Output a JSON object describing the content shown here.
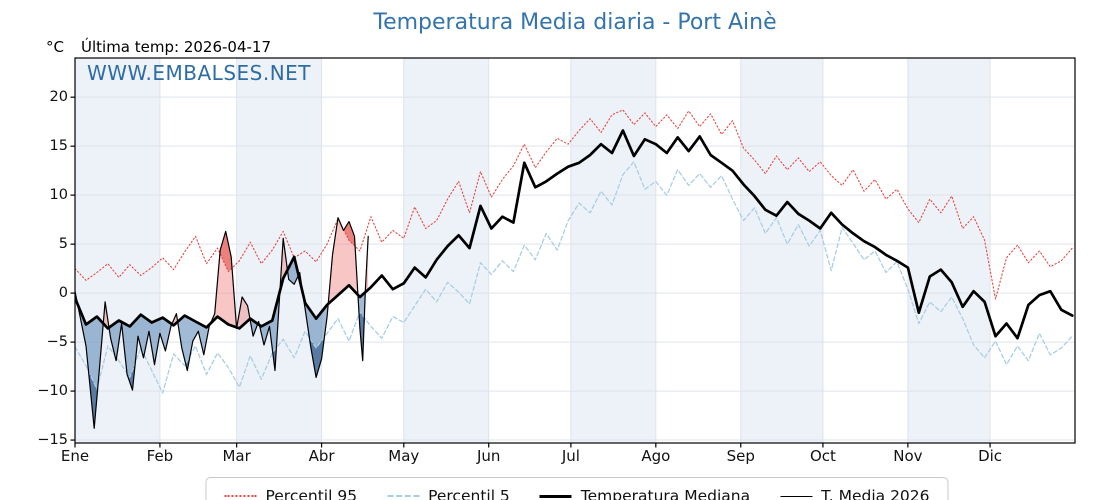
{
  "header": {
    "title": "Temperatura Media diaria - Port Ainè",
    "y_unit": "°C",
    "last_temp": "Última temp: 2026-04-17",
    "watermark": "WWW.EMBALSES.NET"
  },
  "legend": {
    "items": [
      {
        "key": "p95",
        "label": "Percentil 95"
      },
      {
        "key": "p5",
        "label": "Percentil 5"
      },
      {
        "key": "median",
        "label": "Temperatura Mediana"
      },
      {
        "key": "t2026",
        "label": "T. Media 2026"
      }
    ]
  },
  "chart_data": {
    "type": "line",
    "title": "Temperatura Media diaria - Port Ainè",
    "xlabel": "",
    "ylabel": "°C",
    "ylim": [
      -15.3,
      24
    ],
    "x_unit": "day_of_year",
    "grid": true,
    "legend_position": "bottom-center",
    "y_ticks": [
      -15,
      -10,
      -5,
      0,
      5,
      10,
      15,
      20
    ],
    "month_ticks": {
      "labels": [
        "Ene",
        "Feb",
        "Mar",
        "Abr",
        "May",
        "Jun",
        "Jul",
        "Ago",
        "Sep",
        "Oct",
        "Nov",
        "Dic"
      ],
      "start_days": [
        0,
        31,
        59,
        90,
        120,
        151,
        181,
        212,
        243,
        273,
        304,
        334
      ],
      "shaded_months": [
        0,
        2,
        4,
        6,
        8,
        10
      ]
    },
    "colors": {
      "band": "#edf2f8",
      "grid": "#dfe3ea",
      "axis": "#000000",
      "title_blue": "#3374ad",
      "watermark_blue": "#2e6da4",
      "p95_red": "#e8473f",
      "p5_blue": "#a8cee4",
      "black": "#000000"
    },
    "day_grid": [
      0,
      4,
      8,
      12,
      16,
      20,
      24,
      28,
      32,
      36,
      40,
      44,
      48,
      52,
      56,
      60,
      64,
      68,
      72,
      76,
      80,
      84,
      88,
      92,
      96,
      100,
      104,
      108,
      112,
      116,
      120,
      124,
      128,
      132,
      136,
      140,
      144,
      148,
      152,
      156,
      160,
      164,
      168,
      172,
      176,
      180,
      184,
      188,
      192,
      196,
      200,
      204,
      208,
      212,
      216,
      220,
      224,
      228,
      232,
      236,
      240,
      244,
      248,
      252,
      256,
      260,
      264,
      268,
      272,
      276,
      280,
      284,
      288,
      292,
      296,
      300,
      304,
      308,
      312,
      316,
      320,
      324,
      328,
      332,
      336,
      340,
      344,
      348,
      352,
      356,
      360,
      364
    ],
    "series": [
      {
        "key": "p95",
        "name": "Percentil 95",
        "color": "#e8473f",
        "width": 1.1,
        "dash": "1.3 2.4",
        "y": [
          2.5,
          1.3,
          2.1,
          3.0,
          1.6,
          2.9,
          1.8,
          2.6,
          3.6,
          2.4,
          4.2,
          5.8,
          3.0,
          4.6,
          2.2,
          3.3,
          5.2,
          3.0,
          4.4,
          6.3,
          3.6,
          4.3,
          3.2,
          5.0,
          7.6,
          5.4,
          4.3,
          7.8,
          5.2,
          6.4,
          5.6,
          8.8,
          6.6,
          7.4,
          9.6,
          11.4,
          8.2,
          12.4,
          9.8,
          11.6,
          13.0,
          15.2,
          12.8,
          14.4,
          15.8,
          15.2,
          16.6,
          17.8,
          16.4,
          18.2,
          18.7,
          17.2,
          18.4,
          17.0,
          18.2,
          16.8,
          18.6,
          17.0,
          18.3,
          16.2,
          17.6,
          14.8,
          13.6,
          12.2,
          14.0,
          12.6,
          13.8,
          12.4,
          13.4,
          12.0,
          11.0,
          12.6,
          10.4,
          11.6,
          9.6,
          10.6,
          8.6,
          7.2,
          9.6,
          8.2,
          9.9,
          6.6,
          7.8,
          5.4,
          -0.6,
          3.6,
          4.9,
          3.1,
          4.3,
          2.7,
          3.3,
          4.6
        ]
      },
      {
        "key": "p5",
        "name": "Percentil 5",
        "color": "#a8cee4",
        "width": 1.3,
        "dash": "4 2.8",
        "y": [
          -5.5,
          -7.4,
          -9.8,
          -5.4,
          -6.9,
          -8.6,
          -5.6,
          -7.9,
          -10.2,
          -6.2,
          -7.4,
          -5.4,
          -8.3,
          -6.1,
          -7.6,
          -9.6,
          -6.4,
          -8.8,
          -6.1,
          -4.7,
          -6.6,
          -3.9,
          -5.6,
          -4.1,
          -2.6,
          -4.9,
          -1.9,
          -3.4,
          -4.6,
          -2.4,
          -3.0,
          -1.3,
          0.4,
          -0.9,
          1.1,
          0.1,
          -1.1,
          3.1,
          1.9,
          3.3,
          2.2,
          4.9,
          3.4,
          6.1,
          4.4,
          7.4,
          9.2,
          8.2,
          10.4,
          9.0,
          12.1,
          13.4,
          10.6,
          11.4,
          10.0,
          12.6,
          11.0,
          12.2,
          10.8,
          12.0,
          9.6,
          7.4,
          8.7,
          6.1,
          7.7,
          5.0,
          7.0,
          4.8,
          6.4,
          2.3,
          6.7,
          5.1,
          3.4,
          4.3,
          2.1,
          3.2,
          0.4,
          -3.1,
          -0.9,
          -1.9,
          -0.4,
          -2.6,
          -5.3,
          -6.6,
          -4.9,
          -7.3,
          -5.4,
          -6.9,
          -4.1,
          -6.3,
          -5.6,
          -4.4
        ]
      },
      {
        "key": "median",
        "name": "Temperatura Mediana",
        "color": "#000000",
        "width": 2.7,
        "dash": "",
        "y": [
          -0.5,
          -3.2,
          -2.4,
          -3.6,
          -2.8,
          -3.4,
          -2.2,
          -3.0,
          -2.5,
          -3.3,
          -2.3,
          -2.9,
          -3.5,
          -2.4,
          -3.2,
          -3.6,
          -2.6,
          -3.4,
          -2.8,
          1.5,
          3.7,
          -1.0,
          -2.6,
          -1.2,
          -0.2,
          0.8,
          -0.4,
          0.6,
          1.8,
          0.4,
          1.0,
          2.6,
          1.6,
          3.4,
          4.8,
          5.9,
          4.6,
          8.9,
          6.6,
          7.8,
          7.2,
          13.3,
          10.8,
          11.4,
          12.2,
          12.9,
          13.3,
          14.1,
          15.2,
          14.3,
          16.6,
          14.0,
          15.7,
          15.2,
          14.3,
          15.9,
          14.5,
          16.0,
          14.1,
          13.3,
          12.5,
          11.1,
          9.9,
          8.5,
          7.9,
          9.3,
          8.1,
          7.4,
          6.6,
          8.2,
          7.0,
          6.1,
          5.3,
          4.7,
          3.9,
          3.3,
          2.6,
          -2.0,
          1.7,
          2.4,
          1.1,
          -1.4,
          0.2,
          -0.9,
          -4.4,
          -3.1,
          -4.6,
          -1.2,
          -0.2,
          0.2,
          -1.7,
          -2.3
        ]
      },
      {
        "key": "t2026",
        "name": "T. Media 2026",
        "color": "#000000",
        "width": 1.2,
        "dash": "",
        "x": [
          0,
          2,
          4,
          7,
          9,
          11,
          13,
          15,
          17,
          19,
          21,
          23,
          25,
          27,
          29,
          31,
          33,
          35,
          37,
          39,
          41,
          43,
          45,
          47,
          49,
          51,
          53,
          55,
          57,
          59,
          61,
          63,
          65,
          67,
          69,
          71,
          73,
          76,
          78,
          80,
          82,
          84,
          86,
          88,
          90,
          92,
          94,
          96,
          98,
          100,
          102,
          104,
          105,
          106,
          107
        ],
        "y": [
          0.2,
          -2.6,
          -5.4,
          -13.8,
          -7.4,
          -0.9,
          -4.6,
          -6.9,
          -3.1,
          -8.3,
          -9.9,
          -4.4,
          -6.6,
          -3.9,
          -7.3,
          -4.1,
          -5.9,
          -3.4,
          -2.1,
          -5.6,
          -7.9,
          -4.9,
          -3.9,
          -6.3,
          -3.4,
          -2.1,
          4.4,
          6.3,
          3.7,
          -3.6,
          -0.4,
          -1.3,
          -4.4,
          -2.9,
          -5.3,
          -3.4,
          -7.9,
          5.6,
          1.4,
          0.9,
          2.1,
          -1.6,
          -5.4,
          -8.6,
          -6.7,
          -2.4,
          3.9,
          7.7,
          6.4,
          7.3,
          5.8,
          -3.6,
          -6.9,
          0.4,
          5.8
        ]
      }
    ],
    "fills": [
      {
        "a": "t2026",
        "b": "median",
        "mode": "above",
        "color": "rgba(242,128,128,0.45)"
      },
      {
        "a": "t2026",
        "b": "median",
        "mode": "below",
        "color": "rgba(98,140,185,0.60)"
      },
      {
        "a": "t2026",
        "b": "p95",
        "mode": "above",
        "color": "rgba(222,58,52,0.50)"
      },
      {
        "a": "t2026",
        "b": "p5",
        "mode": "below",
        "color": "rgba(35,75,125,0.55)"
      }
    ]
  }
}
